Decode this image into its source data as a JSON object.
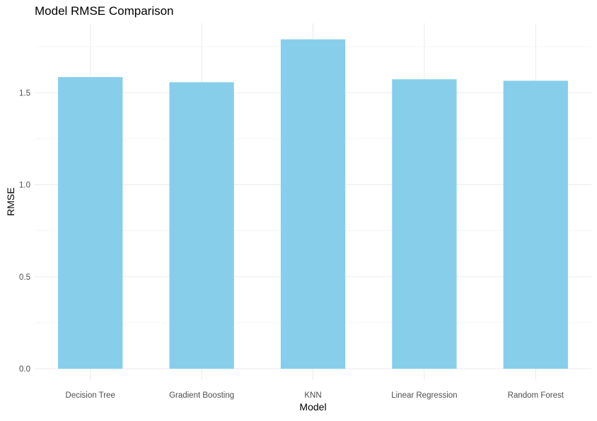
{
  "chart_data": {
    "type": "bar",
    "title": "Model RMSE Comparison",
    "xlabel": "Model",
    "ylabel": "RMSE",
    "categories": [
      "Decision Tree",
      "Gradient Boosting",
      "KNN",
      "Linear Regression",
      "Random Forest"
    ],
    "values": [
      1.585,
      1.557,
      1.79,
      1.573,
      1.565
    ],
    "ylim": [
      0,
      1.83
    ],
    "yticks": [
      0.0,
      0.5,
      1.0,
      1.5
    ],
    "ytick_labels": [
      "0.0",
      "0.5",
      "1.0",
      "1.5"
    ],
    "grid": true,
    "legend": "none",
    "bar_color": "#87CEEB",
    "grid_color": "#ebebeb"
  }
}
